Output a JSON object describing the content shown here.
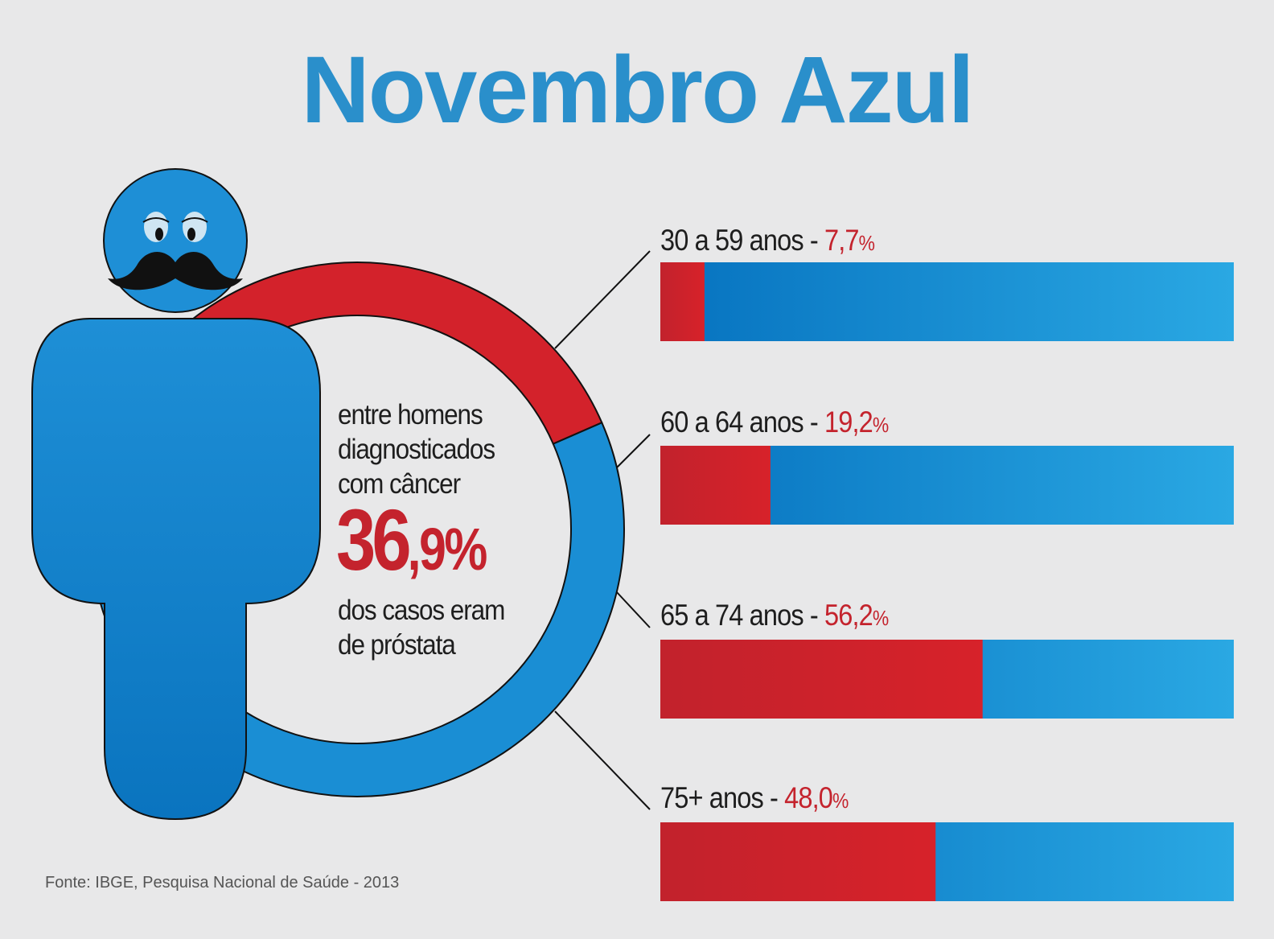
{
  "title": "Novembro Azul",
  "center": {
    "line1": "entre homens",
    "line2": "diagnosticados",
    "line3": "com câncer",
    "stat_main": "36",
    "stat_rest": ",9%",
    "line4": "dos casos eram",
    "line5": "de próstata"
  },
  "source": "Fonte: IBGE, Pesquisa Nacional de Saúde - 2013",
  "colors": {
    "blue": "#1a8ed4",
    "red": "#d3222b",
    "title": "#2a8fcb"
  },
  "icons": [
    "man-figure-icon",
    "mustache-icon"
  ],
  "chart_data": [
    {
      "type": "pie",
      "slices": [
        {
          "label": "de próstata",
          "value": 36.9
        },
        {
          "label": "",
          "value": 63.1
        }
      ]
    },
    {
      "type": "bar",
      "orientation": "horizontal",
      "categories": [
        "30 a 59 anos",
        "60 a 64 anos",
        "65 a 74 anos",
        "75+ anos"
      ],
      "values": [
        7.7,
        19.2,
        56.2,
        48.0
      ],
      "value_labels": [
        "7,7",
        "19,2",
        "56,2",
        "48,0"
      ],
      "value_suffix": "%",
      "xlim": [
        0,
        100
      ]
    }
  ]
}
